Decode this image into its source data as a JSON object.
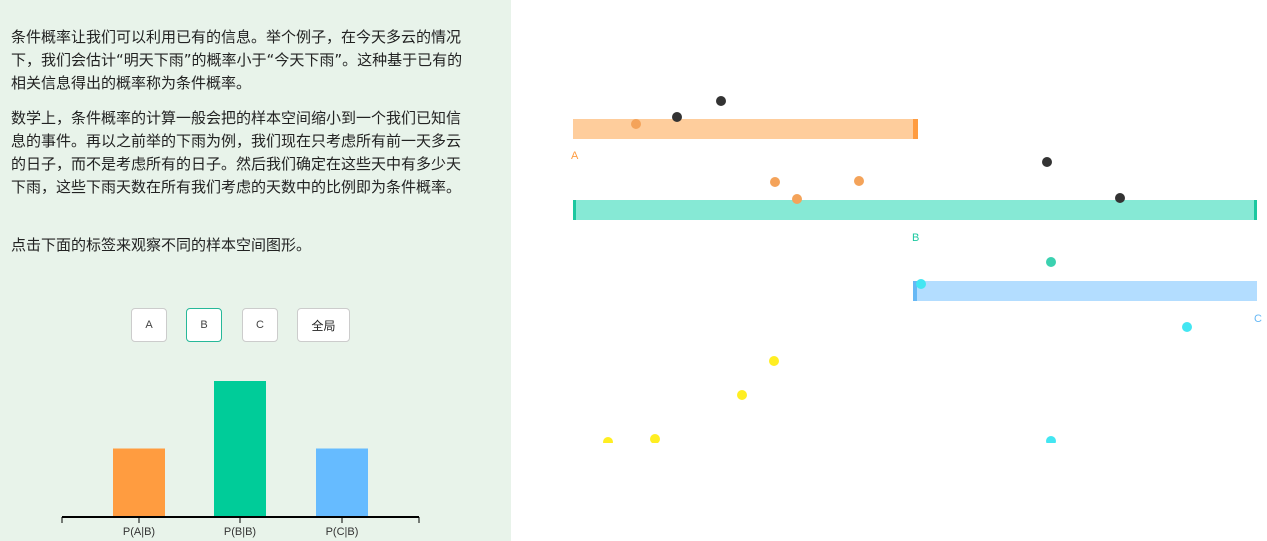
{
  "text": {
    "p1": "条件概率让我们可以利用已有的信息。举个例子，在今天多云的情况下，我们会估计“明天下雨”的概率小于“今天下雨”。这种基于已有的相关信息得出的概率称为条件概率。",
    "p2": "数学上，条件概率的计算一般会把的样本空间缩小到一个我们已知信息的事件。再以之前举的下雨为例，我们现在只考虑所有前一天多云的日子，而不是考虑所有的日子。然后我们确定在这些天中有多少天下雨，这些下雨天数在所有我们考虑的天数中的比例即为条件概率。",
    "p3": "点击下面的标签来观察不同的样本空间图形。"
  },
  "tabs": [
    {
      "label": "A"
    },
    {
      "label": "B",
      "selected": true
    },
    {
      "label": "C"
    },
    {
      "label": "全局"
    }
  ],
  "chart_data": {
    "type": "bar",
    "categories": [
      "P(A|B)",
      "P(B|B)",
      "P(C|B)"
    ],
    "values": [
      0.5,
      1.0,
      0.5
    ],
    "colors": [
      "#ff9c40",
      "#00cc99",
      "#66bbff"
    ],
    "ylim": [
      0,
      1
    ]
  },
  "simulation": {
    "events": [
      {
        "label": "A",
        "color": "#ff9c40",
        "fill": "#fecd9c"
      },
      {
        "label": "B",
        "color": "#1cc8a0",
        "fill": "#86e9d5"
      },
      {
        "label": "C",
        "color": "#66b8f5",
        "fill": "#b3ddff"
      }
    ],
    "ball_colors": {
      "neutral": "#333333",
      "a": "#f4a35a",
      "b": "#3bd1b0",
      "c": "#43e6f2",
      "none": "#ffee22"
    }
  }
}
